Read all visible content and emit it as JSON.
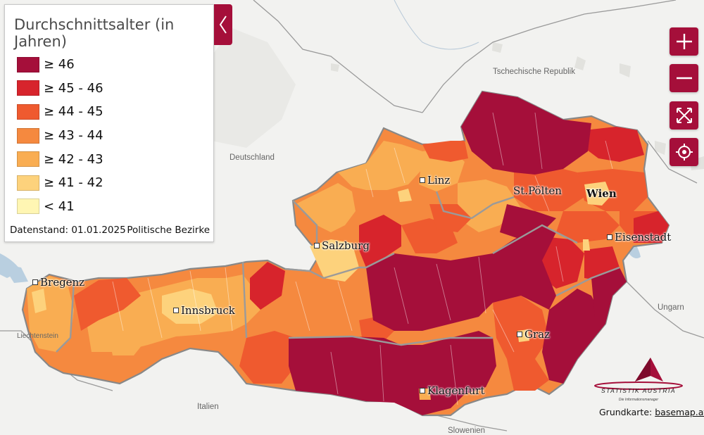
{
  "legend": {
    "title": "Durchschnittsalter (in Jahren)",
    "items": [
      {
        "label": "≥ 46",
        "color": "#a50f3a"
      },
      {
        "label": "≥ 45 - 46",
        "color": "#d7242c"
      },
      {
        "label": "≥ 44 - 45",
        "color": "#ef5a2f"
      },
      {
        "label": "≥ 43 - 44",
        "color": "#f5893f"
      },
      {
        "label": "≥ 42 - 43",
        "color": "#f9ad52"
      },
      {
        "label": "≥ 41 - 42",
        "color": "#fdd27c"
      },
      {
        "label": "< 41",
        "color": "#fff6b3"
      }
    ],
    "data_date": "Datenstand: 01.01.2025",
    "level": "Politische Bezirke"
  },
  "cities": {
    "bregenz": "Bregenz",
    "innsbruck": "Innsbruck",
    "salzburg": "Salzburg",
    "linz": "Linz",
    "st_poelten": "St.Pölten",
    "wien": "Wien",
    "eisenstadt": "Eisenstadt",
    "graz": "Graz",
    "klagenfurt": "Klagenfurt"
  },
  "countries": {
    "czech": "Tschechische Republik",
    "germany": "Deutschland",
    "hungary": "Ungarn",
    "italy": "Italien",
    "slovenia": "Slowenien",
    "liechtenstein": "Liechtenstein"
  },
  "logo": {
    "name": "STATISTIK AUSTRIA",
    "tagline": "Die Informationsmanager"
  },
  "credit": {
    "prefix": "Grundkarte:",
    "link": "basemap.at"
  },
  "controls": {
    "zoom_in": "plus-icon",
    "zoom_out": "minus-icon",
    "fullscreen": "expand-icon",
    "locate": "target-icon"
  }
}
